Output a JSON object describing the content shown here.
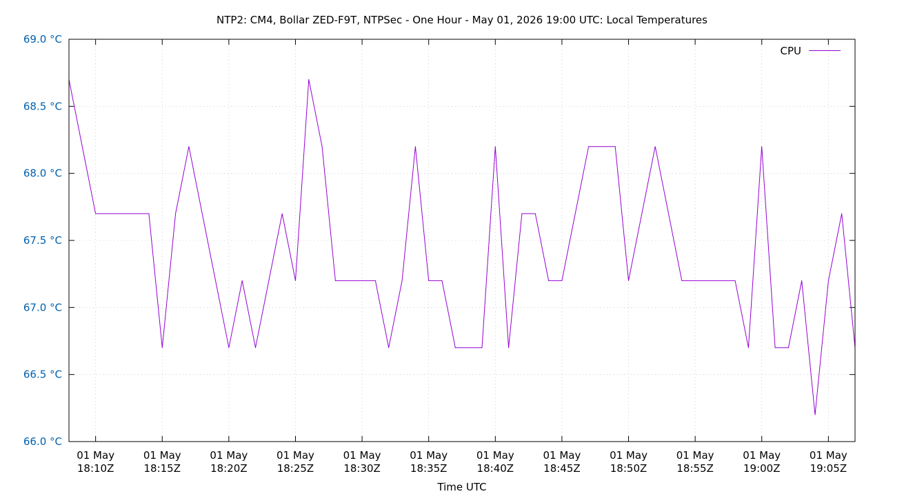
{
  "chart_data": {
    "type": "line",
    "title": "NTP2: CM4, Bollar ZED-F9T, NTPSec - One Hour - May 01, 2026 19:00 UTC: Local Temperatures",
    "xlabel": "Time UTC",
    "ylabel": "",
    "ylim": [
      66.0,
      69.0
    ],
    "xlim": [
      "2026-05-01T18:08:00Z",
      "2026-05-01T19:07:00Z"
    ],
    "grid": true,
    "legend_position": "top-right",
    "y_ticks": [
      {
        "value": 66.0,
        "label": "66.0 °C"
      },
      {
        "value": 66.5,
        "label": "66.5 °C"
      },
      {
        "value": 67.0,
        "label": "67.0 °C"
      },
      {
        "value": 67.5,
        "label": "67.5 °C"
      },
      {
        "value": 68.0,
        "label": "68.0 °C"
      },
      {
        "value": 68.5,
        "label": "68.5 °C"
      },
      {
        "value": 69.0,
        "label": "69.0 °C"
      }
    ],
    "x_ticks": [
      {
        "time": "2026-05-01T18:10:00Z",
        "line1": "01 May",
        "line2": "18:10Z"
      },
      {
        "time": "2026-05-01T18:15:00Z",
        "line1": "01 May",
        "line2": "18:15Z"
      },
      {
        "time": "2026-05-01T18:20:00Z",
        "line1": "01 May",
        "line2": "18:20Z"
      },
      {
        "time": "2026-05-01T18:25:00Z",
        "line1": "01 May",
        "line2": "18:25Z"
      },
      {
        "time": "2026-05-01T18:30:00Z",
        "line1": "01 May",
        "line2": "18:30Z"
      },
      {
        "time": "2026-05-01T18:35:00Z",
        "line1": "01 May",
        "line2": "18:35Z"
      },
      {
        "time": "2026-05-01T18:40:00Z",
        "line1": "01 May",
        "line2": "18:40Z"
      },
      {
        "time": "2026-05-01T18:45:00Z",
        "line1": "01 May",
        "line2": "18:45Z"
      },
      {
        "time": "2026-05-01T18:50:00Z",
        "line1": "01 May",
        "line2": "18:50Z"
      },
      {
        "time": "2026-05-01T18:55:00Z",
        "line1": "01 May",
        "line2": "18:55Z"
      },
      {
        "time": "2026-05-01T19:00:00Z",
        "line1": "01 May",
        "line2": "19:00Z"
      },
      {
        "time": "2026-05-01T19:05:00Z",
        "line1": "01 May",
        "line2": "19:05Z"
      }
    ],
    "series": [
      {
        "name": "CPU",
        "color": "#9400d3",
        "x": [
          "2026-05-01T18:08:00Z",
          "2026-05-01T18:10:00Z",
          "2026-05-01T18:14:00Z",
          "2026-05-01T18:15:00Z",
          "2026-05-01T18:16:00Z",
          "2026-05-01T18:17:00Z",
          "2026-05-01T18:20:00Z",
          "2026-05-01T18:21:00Z",
          "2026-05-01T18:22:00Z",
          "2026-05-01T18:24:00Z",
          "2026-05-01T18:25:00Z",
          "2026-05-01T18:26:00Z",
          "2026-05-01T18:27:00Z",
          "2026-05-01T18:28:00Z",
          "2026-05-01T18:31:00Z",
          "2026-05-01T18:32:00Z",
          "2026-05-01T18:33:00Z",
          "2026-05-01T18:34:00Z",
          "2026-05-01T18:35:00Z",
          "2026-05-01T18:36:00Z",
          "2026-05-01T18:37:00Z",
          "2026-05-01T18:39:00Z",
          "2026-05-01T18:40:00Z",
          "2026-05-01T18:41:00Z",
          "2026-05-01T18:42:00Z",
          "2026-05-01T18:43:00Z",
          "2026-05-01T18:44:00Z",
          "2026-05-01T18:45:00Z",
          "2026-05-01T18:47:00Z",
          "2026-05-01T18:49:00Z",
          "2026-05-01T18:50:00Z",
          "2026-05-01T18:52:00Z",
          "2026-05-01T18:54:00Z",
          "2026-05-01T18:58:00Z",
          "2026-05-01T18:59:00Z",
          "2026-05-01T19:00:00Z",
          "2026-05-01T19:01:00Z",
          "2026-05-01T19:02:00Z",
          "2026-05-01T19:03:00Z",
          "2026-05-01T19:04:00Z",
          "2026-05-01T19:05:00Z",
          "2026-05-01T19:06:00Z",
          "2026-05-01T19:07:00Z"
        ],
        "values": [
          68.7,
          67.7,
          67.7,
          66.7,
          67.7,
          68.2,
          66.7,
          67.2,
          66.7,
          67.7,
          67.2,
          68.7,
          68.2,
          67.2,
          67.2,
          66.7,
          67.2,
          68.2,
          67.2,
          67.2,
          66.7,
          66.7,
          68.2,
          66.7,
          67.7,
          67.7,
          67.2,
          67.2,
          68.2,
          68.2,
          67.2,
          68.2,
          67.2,
          67.2,
          66.7,
          68.2,
          66.7,
          66.7,
          67.2,
          66.2,
          67.2,
          67.7,
          66.7
        ]
      }
    ]
  }
}
